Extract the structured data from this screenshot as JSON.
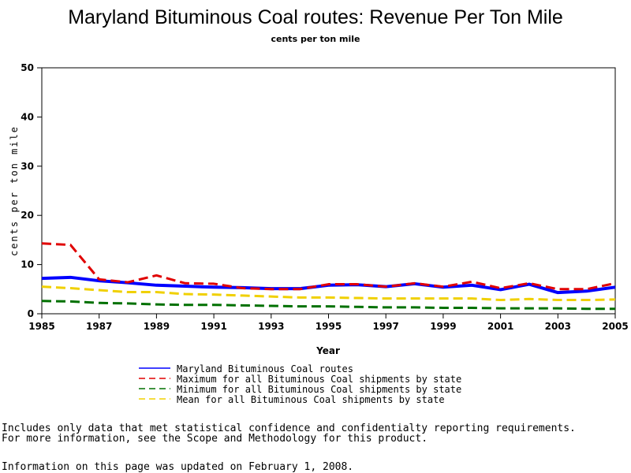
{
  "chart_data": {
    "type": "line",
    "title": "Maryland Bituminous Coal routes: Revenue Per Ton Mile",
    "subtitle": "cents per ton mile",
    "ylabel": "cents per ton mile",
    "xlabel": "Year",
    "x": [
      1985,
      1986,
      1987,
      1988,
      1989,
      1990,
      1991,
      1992,
      1993,
      1994,
      1995,
      1996,
      1997,
      1998,
      1999,
      2000,
      2001,
      2002,
      2003,
      2004,
      2005
    ],
    "xlim": [
      1985,
      2005
    ],
    "xticks": [
      1985,
      1987,
      1989,
      1991,
      1993,
      1995,
      1997,
      1999,
      2001,
      2003,
      2005
    ],
    "ylim": [
      0,
      50
    ],
    "yticks": [
      0,
      10,
      20,
      30,
      40,
      50
    ],
    "series": [
      {
        "name": "Maryland Bituminous Coal routes",
        "color": "#0000ff",
        "dashed": false,
        "values": [
          7.2,
          7.4,
          6.7,
          6.3,
          5.8,
          5.6,
          5.4,
          5.3,
          5.1,
          5.1,
          5.8,
          5.9,
          5.5,
          6.1,
          5.4,
          5.8,
          4.9,
          6.0,
          4.3,
          4.6,
          5.4
        ]
      },
      {
        "name": "Maximum for all Bituminous Coal shipments by state",
        "color": "#e00000",
        "dashed": true,
        "values": [
          14.3,
          14.0,
          7.0,
          6.4,
          7.8,
          6.2,
          6.1,
          5.2,
          5.0,
          5.0,
          6.0,
          6.0,
          5.5,
          6.2,
          5.5,
          6.5,
          5.2,
          6.2,
          5.0,
          5.0,
          6.2
        ]
      },
      {
        "name": "Minimum for all Bituminous Coal shipments by state",
        "color": "#007000",
        "dashed": true,
        "values": [
          2.6,
          2.5,
          2.2,
          2.1,
          1.9,
          1.8,
          1.8,
          1.7,
          1.6,
          1.5,
          1.5,
          1.4,
          1.3,
          1.3,
          1.2,
          1.2,
          1.1,
          1.1,
          1.1,
          1.0,
          1.0
        ]
      },
      {
        "name": "Mean for all Bituminous Coal shipments by state",
        "color": "#f0d000",
        "dashed": true,
        "values": [
          5.5,
          5.2,
          4.8,
          4.4,
          4.4,
          4.0,
          3.9,
          3.7,
          3.5,
          3.3,
          3.3,
          3.2,
          3.1,
          3.1,
          3.1,
          3.1,
          2.8,
          3.0,
          2.8,
          2.8,
          2.9
        ]
      }
    ]
  },
  "notes": [
    "Includes only data that met statistical confidence and confidentialty reporting requirements.",
    "For more information, see the Scope and Methodology for this product."
  ],
  "updated": "Information on this page was updated on February 1, 2008."
}
